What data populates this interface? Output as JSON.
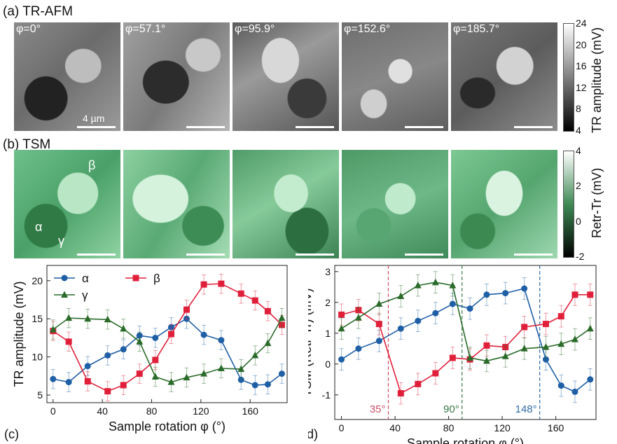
{
  "panel_a": {
    "label": "(a) TR-AFM",
    "images": [
      {
        "phi": "φ=0°",
        "texture": "gray-a"
      },
      {
        "phi": "φ=57.1°",
        "texture": "gray-b"
      },
      {
        "phi": "φ=95.9°",
        "texture": "gray-c"
      },
      {
        "phi": "φ=152.6°",
        "texture": "gray-d"
      },
      {
        "phi": "φ=185.7°",
        "texture": "gray-e"
      }
    ],
    "scalebar_label": "4 µm",
    "colorbar": {
      "title": "TR amplitude (mV)",
      "ticks": [
        "24",
        "20",
        "16",
        "12",
        "8",
        "4"
      ]
    }
  },
  "panel_b": {
    "label": "(b) TSM",
    "region_labels": {
      "alpha": "α",
      "beta": "β",
      "gamma": "γ"
    },
    "colorbar": {
      "title": "Retr-Tr (mV)",
      "ticks": [
        "4",
        "2",
        "0",
        "-2"
      ]
    }
  },
  "chart_data": [
    {
      "panel": "(c)",
      "type": "line",
      "xlabel": "Sample rotation φ (°)",
      "ylabel": "TR amplitude (mV)",
      "xlim": [
        -5,
        190
      ],
      "ylim": [
        4,
        22
      ],
      "xticks": [
        0,
        40,
        80,
        120,
        160
      ],
      "yticks": [
        5,
        10,
        15,
        20
      ],
      "x": [
        0,
        12.7,
        28.1,
        44.3,
        57.1,
        70.2,
        83,
        95.9,
        108.4,
        122.4,
        136.5,
        152.6,
        164,
        174.3,
        185.7
      ],
      "series": [
        {
          "name": "α",
          "color": "#1f5fa6",
          "marker": "circle",
          "values": [
            7.1,
            6.7,
            8.8,
            10.2,
            11.0,
            12.8,
            12.5,
            13.9,
            15.0,
            12.9,
            12.2,
            7.0,
            6.3,
            6.4,
            7.8
          ]
        },
        {
          "name": "β",
          "color": "#e0203a",
          "marker": "square",
          "values": [
            13.4,
            12.0,
            6.8,
            5.5,
            6.3,
            7.8,
            9.6,
            13.0,
            16.2,
            19.5,
            19.6,
            18.3,
            17.4,
            16.0,
            14.2
          ]
        },
        {
          "name": "γ",
          "color": "#2a6b2a",
          "marker": "triangle",
          "values": [
            13.6,
            15.1,
            15.0,
            14.9,
            13.7,
            12.0,
            7.4,
            6.7,
            7.3,
            7.8,
            8.5,
            8.4,
            10.2,
            11.8,
            15.1
          ]
        }
      ]
    },
    {
      "panel": "(d)",
      "type": "line",
      "xlabel": "Sample rotation φ (°)",
      "ylabel": "TSM (Retr-Tr) (mV)",
      "xlim": [
        -5,
        190
      ],
      "ylim": [
        -1.8,
        3.2
      ],
      "xticks": [
        0,
        40,
        80,
        120,
        160
      ],
      "yticks": [
        -1,
        0,
        1,
        2,
        3
      ],
      "x": [
        0,
        12.7,
        28.1,
        44.3,
        57.1,
        70.2,
        83,
        95.9,
        108.4,
        122.4,
        136.5,
        152.6,
        164,
        174.3,
        185.7
      ],
      "series": [
        {
          "name": "α",
          "color": "#1f5fa6",
          "marker": "circle",
          "values": [
            0.15,
            0.5,
            0.75,
            1.15,
            1.4,
            1.65,
            1.95,
            1.8,
            2.25,
            2.3,
            2.45,
            0.15,
            -0.7,
            -0.9,
            -0.5
          ]
        },
        {
          "name": "β",
          "color": "#e0203a",
          "marker": "square",
          "values": [
            1.6,
            1.75,
            1.3,
            -0.95,
            -0.65,
            -0.3,
            0.2,
            0.15,
            0.6,
            0.55,
            1.2,
            1.3,
            1.55,
            2.25,
            2.25
          ]
        },
        {
          "name": "γ",
          "color": "#2a6b2a",
          "marker": "triangle",
          "values": [
            1.15,
            1.5,
            1.95,
            2.2,
            2.55,
            2.65,
            2.55,
            0.2,
            0.1,
            0.25,
            0.5,
            0.55,
            0.65,
            0.8,
            1.15
          ]
        }
      ],
      "vlines": [
        {
          "x": 35,
          "label": "35°",
          "color": "#d0506a"
        },
        {
          "x": 90,
          "label": "90°",
          "color": "#3a7a4a"
        },
        {
          "x": 148,
          "label": "148°",
          "color": "#2f6ea8"
        }
      ]
    }
  ],
  "legend": {
    "alpha": "α",
    "beta": "β",
    "gamma": "γ"
  }
}
